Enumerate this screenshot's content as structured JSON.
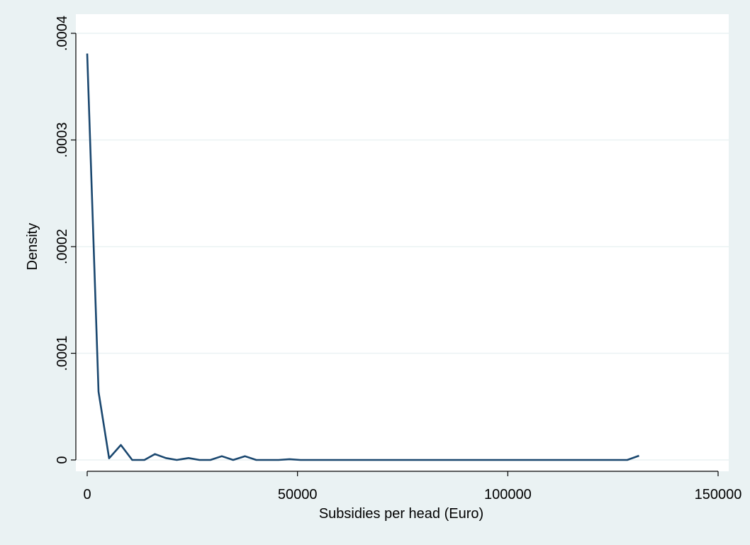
{
  "chart_data": {
    "type": "line",
    "title": "",
    "xlabel": "Subsidies per head (Euro)",
    "ylabel": "Density",
    "xlim": [
      -2000,
      152000
    ],
    "ylim": [
      -1e-05,
      0.0004
    ],
    "x_ticks": [
      0,
      50000,
      100000,
      150000
    ],
    "x_tick_labels": [
      "0",
      "50000",
      "100000",
      "150000"
    ],
    "y_ticks": [
      0,
      0.0001,
      0.0002,
      0.0003,
      0.0004
    ],
    "y_tick_labels": [
      "0",
      ".0001",
      ".0002",
      ".0003",
      ".0004"
    ],
    "grid": true,
    "colors": {
      "line": "#1a476f",
      "background": "#eaf2f3",
      "plot_area": "#ffffff",
      "grid": "#eaf2f3"
    },
    "series": [
      {
        "x": [
          0,
          2700,
          5200,
          8000,
          10700,
          13600,
          16100,
          18700,
          21300,
          24100,
          26700,
          29300,
          32000,
          34700,
          37500,
          40200,
          42700,
          45500,
          48100,
          50700,
          128400,
          131200
        ],
        "y": [
          0.000381,
          6.4e-05,
          1.5e-06,
          1.4e-05,
          0.0,
          0.0,
          5.5e-06,
          1.8e-06,
          0.0,
          1.8e-06,
          0.0,
          0.0,
          3.5e-06,
          0.0,
          3.5e-06,
          0.0,
          0.0,
          0.0,
          7e-07,
          0.0,
          0.0,
          4e-06
        ]
      }
    ]
  }
}
